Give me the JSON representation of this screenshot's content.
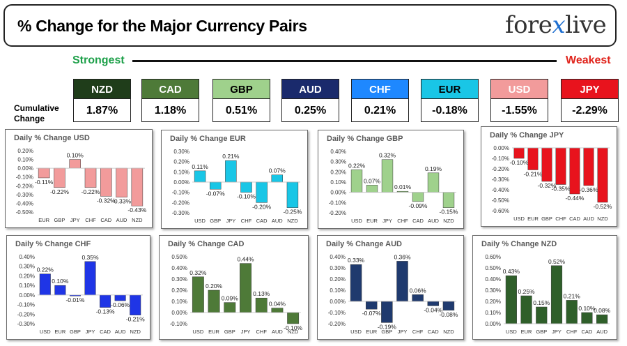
{
  "header": {
    "title": "% Change for the Major Currency Pairs",
    "logo_left": "fore",
    "logo_x": "x",
    "logo_right": "live"
  },
  "scale": {
    "strongest": "Strongest",
    "weakest": "Weakest"
  },
  "cumulative": {
    "label_line1": "Cumulative",
    "label_line2": "Change",
    "items": [
      {
        "name": "NZD",
        "value": "1.87%",
        "bg": "#1f3d1a",
        "fg": "#ffffff"
      },
      {
        "name": "CAD",
        "value": "1.18%",
        "bg": "#4e7a38",
        "fg": "#ffffff"
      },
      {
        "name": "GBP",
        "value": "0.51%",
        "bg": "#9fd18c",
        "fg": "#000000"
      },
      {
        "name": "AUD",
        "value": "0.25%",
        "bg": "#1a2a6c",
        "fg": "#ffffff"
      },
      {
        "name": "CHF",
        "value": "0.21%",
        "bg": "#1e88ff",
        "fg": "#ffffff"
      },
      {
        "name": "EUR",
        "value": "-0.18%",
        "bg": "#19c6e6",
        "fg": "#000000"
      },
      {
        "name": "USD",
        "value": "-1.55%",
        "bg": "#f29b9b",
        "fg": "#ffffff"
      },
      {
        "name": "JPY",
        "value": "-2.29%",
        "bg": "#e8131d",
        "fg": "#ffffff"
      }
    ]
  },
  "chart_data": [
    {
      "type": "bar",
      "title": "Daily % Change USD",
      "categories": [
        "EUR",
        "GBP",
        "JPY",
        "CHF",
        "CAD",
        "AUD",
        "NZD"
      ],
      "values": [
        -0.11,
        -0.22,
        0.1,
        -0.22,
        -0.32,
        -0.33,
        -0.43
      ],
      "labels": [
        "-0.11%",
        "-0.22%",
        "0.10%",
        "-0.22%",
        "-0.32%",
        "-0.33%",
        "-0.43%"
      ],
      "ylim": [
        -0.5,
        0.2
      ],
      "yticks": [
        "0.20%",
        "0.10%",
        "0.00%",
        "-0.10%",
        "-0.20%",
        "-0.30%",
        "-0.40%",
        "-0.50%"
      ],
      "color": "#f29b9b"
    },
    {
      "type": "bar",
      "title": "Daily % Change EUR",
      "categories": [
        "USD",
        "GBP",
        "JPY",
        "CHF",
        "CAD",
        "AUD",
        "NZD"
      ],
      "values": [
        0.11,
        -0.07,
        0.21,
        -0.1,
        -0.2,
        0.07,
        -0.25
      ],
      "labels": [
        "0.11%",
        "-0.07%",
        "0.21%",
        "-0.10%",
        "-0.20%",
        "0.07%",
        "-0.25%"
      ],
      "ylim": [
        -0.3,
        0.3
      ],
      "yticks": [
        "0.30%",
        "0.20%",
        "0.10%",
        "0.00%",
        "-0.10%",
        "-0.20%",
        "-0.30%"
      ],
      "color": "#19c6e6"
    },
    {
      "type": "bar",
      "title": "Daily % Change GBP",
      "categories": [
        "USD",
        "EUR",
        "JPY",
        "CHF",
        "CAD",
        "AUD",
        "NZD"
      ],
      "values": [
        0.22,
        0.07,
        0.32,
        0.01,
        -0.09,
        0.19,
        -0.15
      ],
      "labels": [
        "0.22%",
        "0.07%",
        "0.32%",
        "0.01%",
        "-0.09%",
        "0.19%",
        "-0.15%"
      ],
      "ylim": [
        -0.2,
        0.4
      ],
      "yticks": [
        "0.40%",
        "0.30%",
        "0.20%",
        "0.10%",
        "0.00%",
        "-0.10%",
        "-0.20%"
      ],
      "color": "#9fd18c"
    },
    {
      "type": "bar",
      "title": "Daily % Change JPY",
      "categories": [
        "USD",
        "EUR",
        "GBP",
        "CHF",
        "CAD",
        "AUD",
        "NZD"
      ],
      "values": [
        -0.1,
        -0.21,
        -0.32,
        -0.35,
        -0.44,
        -0.36,
        -0.52
      ],
      "labels": [
        "-0.10%",
        "-0.21%",
        "-0.32%",
        "-0.35%",
        "-0.44%",
        "-0.36%",
        "-0.52%"
      ],
      "ylim": [
        -0.6,
        0.0
      ],
      "yticks": [
        "0.00%",
        "-0.10%",
        "-0.20%",
        "-0.30%",
        "-0.40%",
        "-0.50%",
        "-0.60%"
      ],
      "color": "#e8131d"
    },
    {
      "type": "bar",
      "title": "Daily % Change CHF",
      "categories": [
        "USD",
        "EUR",
        "GBP",
        "JPY",
        "CAD",
        "AUD",
        "NZD"
      ],
      "values": [
        0.22,
        0.1,
        -0.01,
        0.35,
        -0.13,
        -0.06,
        -0.21
      ],
      "labels": [
        "0.22%",
        "0.10%",
        "-0.01%",
        "0.35%",
        "-0.13%",
        "-0.06%",
        "-0.21%"
      ],
      "ylim": [
        -0.3,
        0.4
      ],
      "yticks": [
        "0.40%",
        "0.30%",
        "0.20%",
        "0.10%",
        "0.00%",
        "-0.10%",
        "-0.20%",
        "-0.30%"
      ],
      "color": "#1f35e6"
    },
    {
      "type": "bar",
      "title": "Daily % Change CAD",
      "categories": [
        "USD",
        "EUR",
        "GBP",
        "JPY",
        "CHF",
        "AUD",
        "NZD"
      ],
      "values": [
        0.32,
        0.2,
        0.09,
        0.44,
        0.13,
        0.04,
        -0.1
      ],
      "labels": [
        "0.32%",
        "0.20%",
        "0.09%",
        "0.44%",
        "0.13%",
        "0.04%",
        "-0.10%"
      ],
      "ylim": [
        -0.1,
        0.5
      ],
      "yticks": [
        "0.50%",
        "0.40%",
        "0.30%",
        "0.20%",
        "0.10%",
        "0.00%",
        "-0.10%"
      ],
      "color": "#4e7a38"
    },
    {
      "type": "bar",
      "title": "Daily % Change AUD",
      "categories": [
        "USD",
        "EUR",
        "GBP",
        "JPY",
        "CHF",
        "CAD",
        "NZD"
      ],
      "values": [
        0.33,
        -0.07,
        -0.19,
        0.36,
        0.06,
        -0.04,
        -0.08
      ],
      "labels": [
        "0.33%",
        "-0.07%",
        "-0.19%",
        "0.36%",
        "0.06%",
        "-0.04%",
        "-0.08%"
      ],
      "ylim": [
        -0.2,
        0.4
      ],
      "yticks": [
        "0.40%",
        "0.30%",
        "0.20%",
        "0.10%",
        "0.00%",
        "-0.10%",
        "-0.20%"
      ],
      "color": "#1f3a6e"
    },
    {
      "type": "bar",
      "title": "Daily % Change NZD",
      "categories": [
        "USD",
        "EUR",
        "GBP",
        "JPY",
        "CHF",
        "CAD",
        "AUD"
      ],
      "values": [
        0.43,
        0.25,
        0.15,
        0.52,
        0.21,
        0.1,
        0.08
      ],
      "labels": [
        "0.43%",
        "0.25%",
        "0.15%",
        "0.52%",
        "0.21%",
        "0.10%",
        "0.08%"
      ],
      "ylim": [
        0.0,
        0.6
      ],
      "yticks": [
        "0.60%",
        "0.50%",
        "0.40%",
        "0.30%",
        "0.20%",
        "0.10%",
        "0.00%"
      ],
      "color": "#2f5f2a"
    }
  ]
}
